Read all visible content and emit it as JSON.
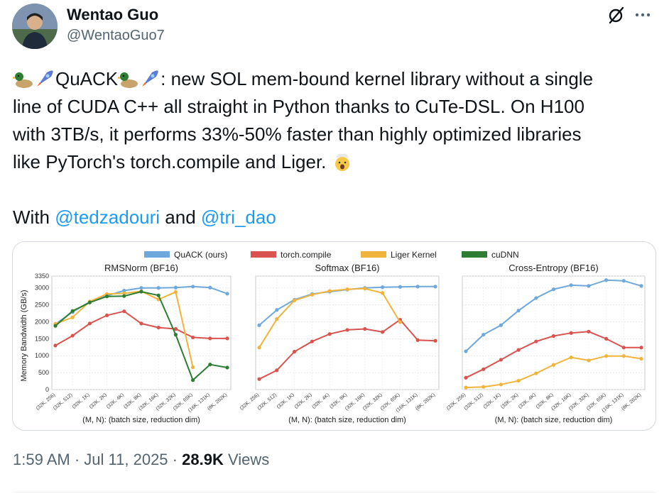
{
  "colors": {
    "quack": "#6fa8dc",
    "torch": "#d9534f",
    "liger": "#f0b43c",
    "cudnn": "#2e7d32",
    "mention": "#1d9bf0"
  },
  "author": {
    "name": "Wentao Guo",
    "handle": "@WentaoGuo7",
    "avatar_icon": "profile-photo"
  },
  "icons": {
    "grok": "grok-icon",
    "more": "more-dots-icon"
  },
  "tweet": {
    "line1_text": "QuACK",
    "line1_rest": ": new SOL mem-bound kernel library without a single",
    "line2": "line of CUDA C++ all straight in Python thanks to CuTe-DSL. On H100",
    "line3": "with 3TB/s, it performs 33%-50% faster than highly optimized libraries",
    "line4": "like PyTorch's torch.compile and Liger.",
    "with_prefix": "With",
    "mention1": "@tedzadouri",
    "and_text": "and",
    "mention2": "@tri_dao",
    "emojis": [
      "duck",
      "rocket",
      "duck",
      "rocket",
      "exploding-head"
    ]
  },
  "meta": {
    "time": "1:59 AM",
    "date": "Jul 11, 2025",
    "views_count": "28.9K",
    "views_label": "Views",
    "sep": "·"
  },
  "chart_data": [
    {
      "type": "line",
      "title": "RMSNorm (BF16)",
      "xlabel": "(M, N): (batch size, reduction dim)",
      "ylabel": "Memory Bandwidth (GB/s)",
      "ylim": [
        0,
        3350
      ],
      "yticks": [
        0,
        500,
        1000,
        1500,
        2000,
        2500,
        3000,
        3350
      ],
      "categories": [
        "(32K, 256)",
        "(32K, 512)",
        "(32K, 1K)",
        "(32K, 2K)",
        "(32K, 4K)",
        "(32K, 8K)",
        "(32K, 16K)",
        "(32K, 32K)",
        "(32K, 65K)",
        "(16K, 131K)",
        "(8K, 262K)"
      ],
      "series": [
        {
          "name": "QuACK (ours)",
          "values": [
            1930,
            2290,
            2590,
            2770,
            2920,
            3000,
            3000,
            3010,
            3040,
            3010,
            2830
          ]
        },
        {
          "name": "torch.compile",
          "values": [
            1300,
            1590,
            1950,
            2190,
            2310,
            1950,
            1830,
            1790,
            1540,
            1510,
            1510
          ]
        },
        {
          "name": "Liger Kernel",
          "values": [
            1940,
            2130,
            2600,
            2820,
            2840,
            2900,
            2660,
            2880,
            660,
            null,
            null
          ]
        },
        {
          "name": "cuDNN",
          "values": [
            1880,
            2320,
            2570,
            2750,
            2760,
            2890,
            2780,
            1620,
            280,
            740,
            650
          ]
        }
      ]
    },
    {
      "type": "line",
      "title": "Softmax (BF16)",
      "xlabel": "(M, N): (batch size, reduction dim)",
      "ylim": [
        0,
        3350
      ],
      "categories": [
        "(32K, 256)",
        "(32K, 512)",
        "(32K, 1K)",
        "(32K, 2K)",
        "(32K, 4K)",
        "(32K, 8K)",
        "(32K, 16K)",
        "(32K, 32K)",
        "(32K, 65K)",
        "(16K, 131K)",
        "(8K, 262K)"
      ],
      "series": [
        {
          "name": "QuACK (ours)",
          "values": [
            1900,
            2350,
            2650,
            2820,
            2890,
            2950,
            3000,
            3020,
            3030,
            3040,
            3040
          ]
        },
        {
          "name": "torch.compile",
          "values": [
            310,
            570,
            1120,
            1420,
            1640,
            1760,
            1790,
            1700,
            2060,
            1460,
            1440
          ]
        },
        {
          "name": "Liger Kernel",
          "values": [
            1240,
            2080,
            2630,
            2800,
            2910,
            2960,
            2980,
            2850,
            1990,
            null,
            null
          ]
        }
      ]
    },
    {
      "type": "line",
      "title": "Cross-Entropy (BF16)",
      "xlabel": "(M, N): (batch size, reduction dim)",
      "ylim": [
        0,
        3350
      ],
      "categories": [
        "(32K, 256)",
        "(32K, 512)",
        "(32K, 1K)",
        "(32K, 2K)",
        "(32K, 4K)",
        "(32K, 8K)",
        "(32K, 16K)",
        "(32K, 32K)",
        "(32K, 65K)",
        "(16K, 131K)",
        "(8K, 262K)"
      ],
      "series": [
        {
          "name": "QuACK (ours)",
          "values": [
            1130,
            1620,
            1900,
            2330,
            2700,
            2960,
            3080,
            3060,
            3230,
            3210,
            3060
          ]
        },
        {
          "name": "torch.compile",
          "values": [
            350,
            600,
            880,
            1170,
            1420,
            1580,
            1670,
            1710,
            1500,
            1240,
            1240
          ]
        },
        {
          "name": "Liger Kernel",
          "values": [
            60,
            80,
            150,
            260,
            480,
            730,
            950,
            860,
            990,
            990,
            910
          ]
        }
      ]
    }
  ],
  "legend": {
    "placement": "top-center",
    "items": [
      "QuACK (ours)",
      "torch.compile",
      "Liger Kernel",
      "cuDNN"
    ]
  }
}
